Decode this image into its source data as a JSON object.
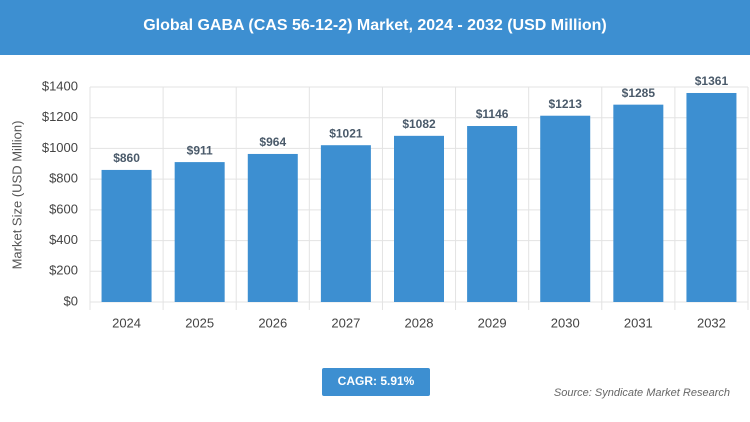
{
  "chart_data": {
    "type": "bar",
    "title": "Global GABA (CAS 56-12-2) Market, 2024 - 2032 (USD Million)",
    "y_label": "Market Size (USD Million)",
    "categories": [
      "2024",
      "2025",
      "2026",
      "2027",
      "2028",
      "2029",
      "2030",
      "2031",
      "2032"
    ],
    "values": [
      860,
      911,
      964,
      1021,
      1082,
      1146,
      1213,
      1285,
      1361
    ],
    "value_labels": [
      "$860",
      "$911",
      "$964",
      "$1021",
      "$1082",
      "$1146",
      "$1213",
      "$1285",
      "$1361"
    ],
    "color": "#3d8fd1",
    "ylim": [
      0,
      1400
    ],
    "yticks": [
      {
        "value": 0,
        "label": "$0"
      },
      {
        "value": 200,
        "label": "$200"
      },
      {
        "value": 400,
        "label": "$400"
      },
      {
        "value": 600,
        "label": "$600"
      },
      {
        "value": 800,
        "label": "$800"
      },
      {
        "value": 1000,
        "label": "$1000"
      },
      {
        "value": 1200,
        "label": "$1200"
      },
      {
        "value": 1400,
        "label": "$1400"
      }
    ],
    "grid": true,
    "cagr": "CAGR: 5.91%",
    "source": "Source: Syndicate Market Research"
  }
}
